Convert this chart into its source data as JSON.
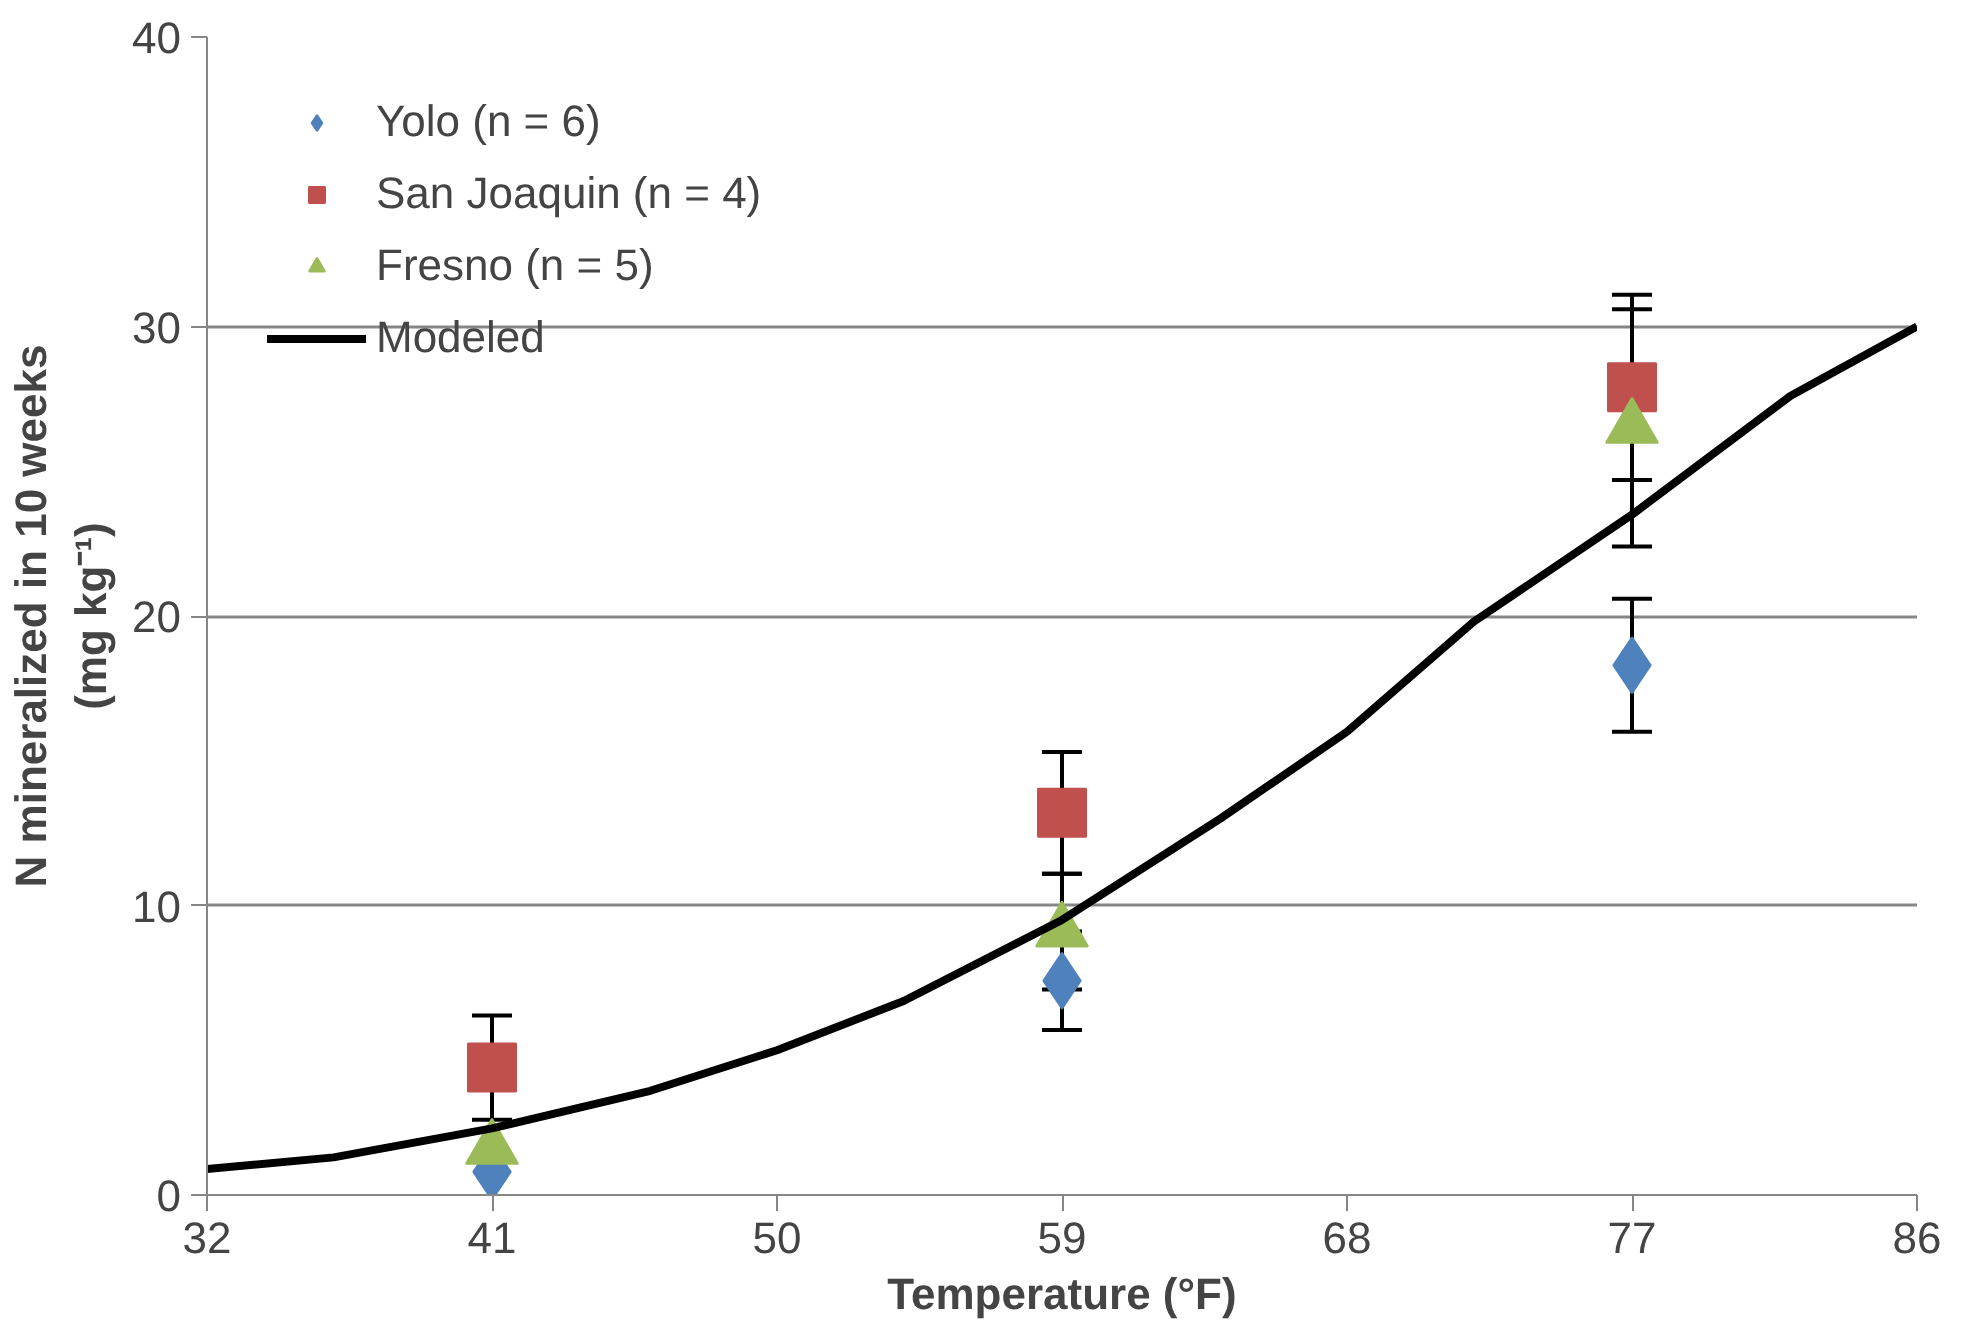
{
  "chart_data": {
    "type": "scatter",
    "xlabel": "Temperature (°F)",
    "ylabel": "N mineralized in 10 weeks\n(mg kg⁻¹)",
    "xlim": [
      32,
      86
    ],
    "xticks": [
      32,
      41,
      50,
      59,
      68,
      77,
      86
    ],
    "ylim": [
      0,
      40
    ],
    "yticks": [
      0,
      10,
      20,
      30,
      40
    ],
    "grid": "y",
    "legend": "top left",
    "series": [
      {
        "name": "Yolo (n = 6)",
        "color": "#4f81bd",
        "marker": "diamond",
        "x": [
          41,
          59,
          77
        ],
        "values": [
          0.8,
          7.4,
          18.3
        ],
        "errors": [
          null,
          1.7,
          2.3
        ]
      },
      {
        "name": "San Joaquin (n = 4)",
        "color": "#c0504d",
        "marker": "square",
        "x": [
          41,
          59,
          77
        ],
        "values": [
          4.4,
          13.2,
          27.9
        ],
        "errors": [
          1.8,
          2.1,
          3.2
        ]
      },
      {
        "name": "Fresno (n = 5)",
        "color": "#9bbb59",
        "marker": "triangle",
        "x": [
          41,
          59,
          77
        ],
        "values": [
          1.6,
          9.1,
          26.5
        ],
        "errors": [
          null,
          2.0,
          4.1
        ]
      },
      {
        "name": "Modeled",
        "type": "line",
        "color": "#000000",
        "marker": "none",
        "x": [
          32,
          36,
          41,
          46,
          50,
          54,
          59,
          64,
          68,
          72,
          77,
          82,
          86
        ],
        "values": [
          0.9,
          1.3,
          2.3,
          3.6,
          5.0,
          6.7,
          9.5,
          13.0,
          16.0,
          19.8,
          23.5,
          27.6,
          30.0
        ]
      }
    ]
  }
}
